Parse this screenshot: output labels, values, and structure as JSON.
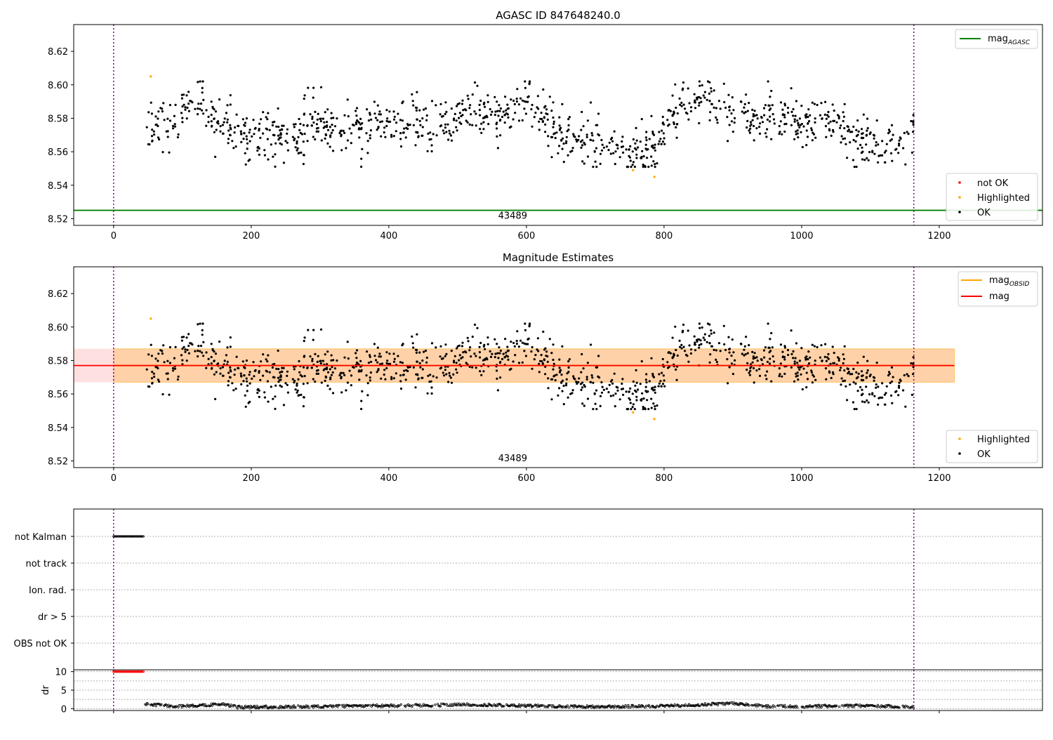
{
  "figure": {
    "top_title": "AGASC ID 847648240.0",
    "mid_title": "Magnitude Estimates"
  },
  "chart_data": [
    {
      "type": "scatter",
      "title": "AGASC ID 847648240.0",
      "xlim": [
        -58,
        1350
      ],
      "ylim": [
        8.516,
        8.636
      ],
      "x_ticks": [
        0,
        200,
        400,
        600,
        800,
        1000,
        1200
      ],
      "y_ticks": [
        8.52,
        8.54,
        8.56,
        8.58,
        8.6,
        8.62
      ],
      "vlines": [
        0,
        1163
      ],
      "annotation": "43489",
      "mag_agasc": 8.525,
      "legends": {
        "lines": [
          {
            "name": "mag",
            "subscript": "AGASC",
            "color": "#008000"
          }
        ],
        "points": [
          {
            "name": "not OK",
            "color": "#ff0000"
          },
          {
            "name": "Highlighted",
            "color": "#ffa500"
          },
          {
            "name": "OK",
            "color": "#000000"
          }
        ]
      },
      "highlighted": [
        [
          54,
          8.605
        ],
        [
          755,
          8.549
        ],
        [
          786,
          8.545
        ]
      ],
      "trend": [
        [
          48,
          8.576
        ],
        [
          80,
          8.574
        ],
        [
          100,
          8.587
        ],
        [
          130,
          8.593
        ],
        [
          150,
          8.578
        ],
        [
          180,
          8.571
        ],
        [
          210,
          8.569
        ],
        [
          240,
          8.572
        ],
        [
          270,
          8.569
        ],
        [
          285,
          8.582
        ],
        [
          300,
          8.576
        ],
        [
          330,
          8.573
        ],
        [
          380,
          8.577
        ],
        [
          410,
          8.579
        ],
        [
          430,
          8.578
        ],
        [
          450,
          8.572
        ],
        [
          470,
          8.574
        ],
        [
          500,
          8.583
        ],
        [
          530,
          8.585
        ],
        [
          560,
          8.582
        ],
        [
          590,
          8.588
        ],
        [
          615,
          8.59
        ],
        [
          625,
          8.583
        ],
        [
          640,
          8.573
        ],
        [
          670,
          8.566
        ],
        [
          700,
          8.568
        ],
        [
          740,
          8.561
        ],
        [
          760,
          8.559
        ],
        [
          780,
          8.563
        ],
        [
          790,
          8.558
        ],
        [
          800,
          8.575
        ],
        [
          830,
          8.59
        ],
        [
          860,
          8.592
        ],
        [
          890,
          8.583
        ],
        [
          920,
          8.58
        ],
        [
          950,
          8.582
        ],
        [
          980,
          8.578
        ],
        [
          1010,
          8.577
        ],
        [
          1030,
          8.582
        ],
        [
          1060,
          8.572
        ],
        [
          1090,
          8.567
        ],
        [
          1120,
          8.564
        ],
        [
          1145,
          8.568
        ],
        [
          1163,
          8.576
        ]
      ]
    },
    {
      "type": "scatter",
      "title": "Magnitude Estimates",
      "xlim": [
        -58,
        1350
      ],
      "ylim": [
        8.516,
        8.636
      ],
      "x_ticks": [
        0,
        200,
        400,
        600,
        800,
        1000,
        1200
      ],
      "y_ticks": [
        8.52,
        8.54,
        8.56,
        8.58,
        8.6,
        8.62
      ],
      "vlines": [
        0,
        1163
      ],
      "annotation": "43489",
      "mag": 8.577,
      "mag_obsid": 8.577,
      "band_mag": [
        8.567,
        8.587
      ],
      "band_mag_obsid": [
        8.567,
        8.587
      ],
      "band_x": [
        -58,
        1222
      ],
      "band_obsid_x": [
        0,
        1222
      ],
      "legends": {
        "lines": [
          {
            "name": "mag",
            "subscript": "OBSID",
            "color": "#ffa500"
          },
          {
            "name": "mag",
            "subscript": "",
            "color": "#ff0000"
          }
        ],
        "points": [
          {
            "name": "Highlighted",
            "color": "#ffa500"
          },
          {
            "name": "OK",
            "color": "#000000"
          }
        ]
      }
    },
    {
      "type": "scatter",
      "xlim": [
        -58,
        1350
      ],
      "categories": [
        "not Kalman",
        "not track",
        "Ion. rad.",
        "dr > 5",
        "OBS not OK"
      ],
      "flag_ranges": {
        "not Kalman": [
          0,
          44
        ]
      },
      "x_ticks": [
        0,
        200,
        400,
        600,
        800,
        1000,
        1200
      ],
      "vlines": [
        0,
        1163
      ]
    },
    {
      "type": "scatter",
      "ylabel": "dr",
      "xlim": [
        -58,
        1350
      ],
      "ylim": [
        -0.5,
        10.5
      ],
      "y_ticks": [
        0,
        5,
        10
      ],
      "x_ticks": [
        0,
        200,
        400,
        600,
        800,
        1000,
        1200
      ],
      "vlines": [
        0,
        1163
      ],
      "dr_clipped": [
        [
          0,
          44,
          10
        ]
      ],
      "dr_trend": [
        [
          45,
          1.3
        ],
        [
          60,
          1.0
        ],
        [
          100,
          0.6
        ],
        [
          160,
          1.2
        ],
        [
          180,
          0.4
        ],
        [
          300,
          0.6
        ],
        [
          450,
          0.9
        ],
        [
          520,
          1.1
        ],
        [
          600,
          0.8
        ],
        [
          700,
          0.5
        ],
        [
          800,
          0.7
        ],
        [
          880,
          1.3
        ],
        [
          900,
          1.4
        ],
        [
          950,
          0.6
        ],
        [
          1050,
          0.7
        ],
        [
          1100,
          0.8
        ],
        [
          1163,
          0.4
        ]
      ]
    }
  ]
}
